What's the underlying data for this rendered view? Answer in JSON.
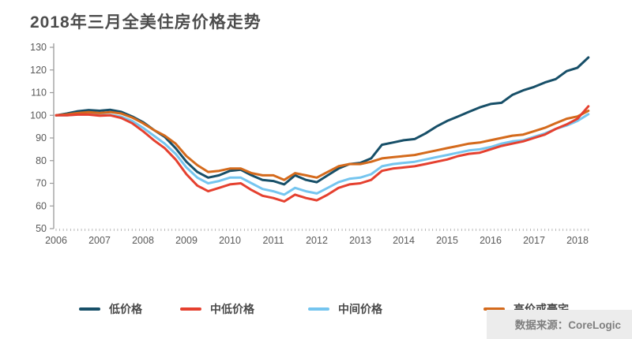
{
  "page": {
    "title": "2018年三月全美住房价格走势",
    "source_note": "数据来源：CoreLogic"
  },
  "chart_data": {
    "type": "line",
    "title": "2018年三月全美住房价格走势",
    "source": "数据来源：CoreLogic",
    "x_start": 2006,
    "x_end": 2018.25,
    "x_step_years": 0.25,
    "x_tick_labels": [
      "2006",
      "2007",
      "2008",
      "2009",
      "2010",
      "2011",
      "2012",
      "2013",
      "2014",
      "2015",
      "2016",
      "2017",
      "2018"
    ],
    "y_ticks": [
      50,
      60,
      70,
      80,
      90,
      100,
      110,
      120,
      130
    ],
    "ylim": [
      50,
      130
    ],
    "grid": false,
    "legend_position": "bottom",
    "minor_ticks": "monthly",
    "axis_color": "#9a9a9a",
    "tick_label_color": "#595959",
    "series": [
      {
        "name": "低价格",
        "color": "#174f68",
        "values": [
          100,
          100.8,
          101.8,
          102.3,
          102,
          102.4,
          101.5,
          99.5,
          97,
          93.5,
          90.5,
          85.5,
          79.5,
          75,
          72.5,
          73.5,
          75.5,
          76,
          73.5,
          71.5,
          71,
          69.5,
          73.5,
          71.5,
          70.5,
          73.5,
          76.5,
          78.5,
          79,
          81,
          87,
          88,
          89,
          89.5,
          92,
          95,
          97.5,
          99.5,
          101.5,
          103.5,
          105,
          105.5,
          109,
          111,
          112.5,
          114.5,
          116,
          119.5,
          121,
          125.5
        ]
      },
      {
        "name": "中低价格",
        "color": "#e5402f",
        "values": [
          100,
          100,
          100.3,
          100.3,
          99.8,
          100,
          98.8,
          96.5,
          93,
          89,
          85.5,
          80.5,
          74,
          69,
          66.5,
          68,
          69.5,
          70,
          67,
          64.5,
          63.5,
          62,
          65,
          63.5,
          62.5,
          65,
          68,
          69.5,
          70,
          71.5,
          75.5,
          76.5,
          77,
          77.5,
          78.5,
          79.5,
          80.5,
          82,
          83,
          83.5,
          85,
          86.5,
          87.5,
          88.5,
          90,
          91.5,
          94,
          96,
          98.5,
          104
        ]
      },
      {
        "name": "中间价格",
        "color": "#75c5ef",
        "values": [
          100,
          100,
          100.4,
          100.4,
          100,
          100.2,
          99.4,
          97.5,
          94.5,
          91,
          87.5,
          83,
          77,
          72.5,
          70,
          71,
          72.5,
          72.5,
          70,
          67.5,
          66.5,
          65,
          68,
          66.5,
          65.5,
          68,
          70.5,
          72,
          72.5,
          74,
          77.5,
          78.5,
          79,
          79.5,
          80.5,
          81.5,
          82.5,
          83.5,
          84.5,
          85,
          86,
          87.5,
          88.5,
          89,
          90.5,
          92,
          94,
          95.5,
          97.5,
          100.5
        ]
      },
      {
        "name": "高价或豪宅",
        "color": "#d46a1c",
        "values": [
          100,
          100.4,
          101,
          101.4,
          101,
          101.4,
          100.8,
          99,
          96.5,
          93.5,
          91,
          87.5,
          82,
          78,
          75,
          75.5,
          76.5,
          76.5,
          74.5,
          73.5,
          73.5,
          71.5,
          74.5,
          73.5,
          72.5,
          75,
          77.5,
          78.5,
          78.5,
          79.5,
          81,
          81.5,
          82,
          82.5,
          83.5,
          84.5,
          85.5,
          86.5,
          87.5,
          88,
          89,
          90,
          91,
          91.5,
          93,
          94.5,
          96.5,
          98.5,
          99.5,
          102
        ]
      }
    ],
    "draw_order": [
      2,
      0,
      3,
      1
    ]
  }
}
